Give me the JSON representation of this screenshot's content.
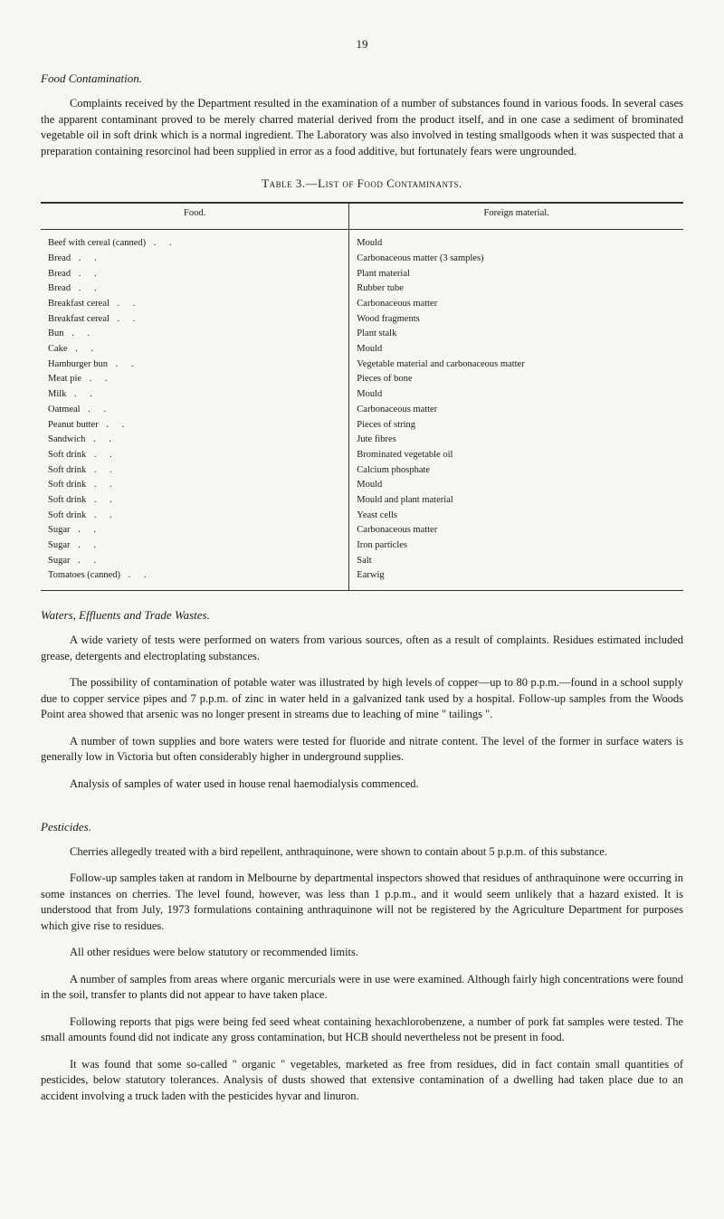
{
  "pageNumber": "19",
  "section1": {
    "title": "Food Contamination.",
    "para1": "Complaints received by the Department resulted in the examination of a number of substances found in various foods. In several cases the apparent contaminant proved to be merely charred material derived from the product itself, and in one case a sediment of brominated vegetable oil in soft drink which is a normal ingredient. The Laboratory was also involved in testing smallgoods when it was suspected that a preparation containing resorcinol had been supplied in error as a food additive, but fortunately fears were ungrounded."
  },
  "table": {
    "title": "Table 3.—List of Food Contaminants.",
    "headers": {
      "food": "Food.",
      "foreign": "Foreign material."
    },
    "rows": [
      {
        "food": "Beef with cereal (canned)",
        "foreign": "Mould"
      },
      {
        "food": "Bread",
        "foreign": "Carbonaceous matter (3 samples)"
      },
      {
        "food": "Bread",
        "foreign": "Plant material"
      },
      {
        "food": "Bread",
        "foreign": "Rubber tube"
      },
      {
        "food": "Breakfast cereal",
        "foreign": "Carbonaceous matter"
      },
      {
        "food": "Breakfast cereal",
        "foreign": "Wood fragments"
      },
      {
        "food": "Bun",
        "foreign": "Plant stalk"
      },
      {
        "food": "Cake",
        "foreign": "Mould"
      },
      {
        "food": "Hamburger bun",
        "foreign": "Vegetable material and carbonaceous matter"
      },
      {
        "food": "Meat pie",
        "foreign": "Pieces of bone"
      },
      {
        "food": "Milk",
        "foreign": "Mould"
      },
      {
        "food": "Oatmeal",
        "foreign": "Carbonaceous matter"
      },
      {
        "food": "Peanut butter",
        "foreign": "Pieces of string"
      },
      {
        "food": "Sandwich",
        "foreign": "Jute fibres"
      },
      {
        "food": "Soft drink",
        "foreign": "Brominated vegetable oil"
      },
      {
        "food": "Soft drink",
        "foreign": "Calcium phosphate"
      },
      {
        "food": "Soft drink",
        "foreign": "Mould"
      },
      {
        "food": "Soft drink",
        "foreign": "Mould and plant material"
      },
      {
        "food": "Soft drink",
        "foreign": "Yeast cells"
      },
      {
        "food": "Sugar",
        "foreign": "Carbonaceous matter"
      },
      {
        "food": "Sugar",
        "foreign": "Iron particles"
      },
      {
        "food": "Sugar",
        "foreign": "Salt"
      },
      {
        "food": "Tomatoes (canned)",
        "foreign": "Earwig"
      }
    ]
  },
  "section2": {
    "title": "Waters, Effluents and Trade Wastes.",
    "para1": "A wide variety of tests were performed on waters from various sources, often as a result of complaints. Residues estimated included grease, detergents and electroplating substances.",
    "para2": "The possibility of contamination of potable water was illustrated by high levels of copper—up to 80 p.p.m.—found in a school supply due to copper service pipes and 7 p.p.m. of zinc in water held in a galvanized tank used by a hospital. Follow-up samples from the Woods Point area showed that arsenic was no longer present in streams due to leaching of mine \" tailings \".",
    "para3": "A number of town supplies and bore waters were tested for fluoride and nitrate content. The level of the former in surface waters is generally low in Victoria but often considerably higher in underground supplies.",
    "para4": "Analysis of samples of water used in house renal haemodialysis commenced."
  },
  "section3": {
    "title": "Pesticides.",
    "para1": "Cherries allegedly treated with a bird repellent, anthraquinone, were shown to contain about 5 p.p.m. of this substance.",
    "para2": "Follow-up samples taken at random in Melbourne by departmental inspectors showed that residues of anthraquinone were occurring in some instances on cherries. The level found, however, was less than 1 p.p.m., and it would seem unlikely that a hazard existed. It is understood that from July, 1973 formulations containing anthraquinone will not be registered by the Agriculture Department for purposes which give rise to residues.",
    "para3": "All other residues were below statutory or recommended limits.",
    "para4": "A number of samples from areas where organic mercurials were in use were examined. Although fairly high concentrations were found in the soil, transfer to plants did not appear to have taken place.",
    "para5": "Following reports that pigs were being fed seed wheat containing hexachlorobenzene, a number of pork fat samples were tested. The small amounts found did not indicate any gross contamination, but HCB should nevertheless not be present in food.",
    "para6": "It was found that some so-called \" organic \" vegetables, marketed as free from residues, did in fact contain small quantities of pesticides, below statutory tolerances. Analysis of dusts showed that extensive contamination of a dwelling had taken place due to an accident involving a truck laden with the pesticides hyvar and linuron."
  }
}
